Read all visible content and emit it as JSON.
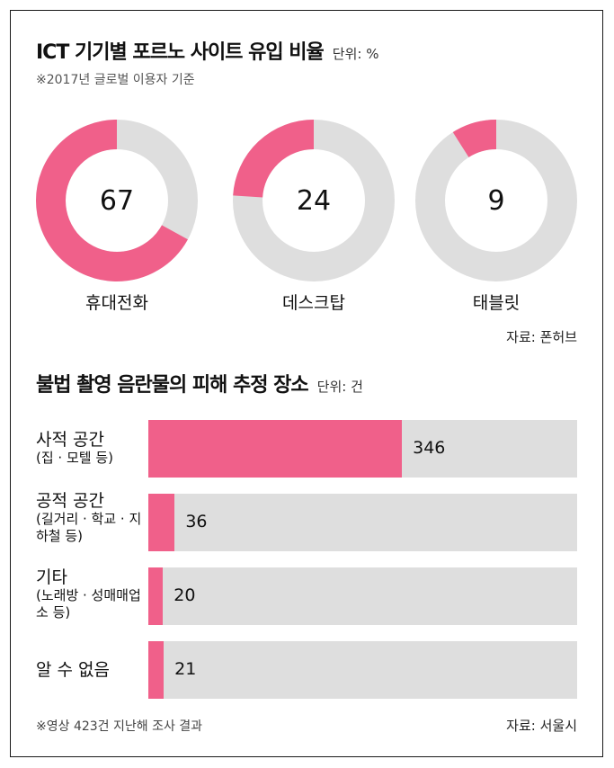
{
  "colors": {
    "accent": "#f0608a",
    "track": "#dedede"
  },
  "section1": {
    "title": "ICT 기기별 포르노 사이트 유입 비율",
    "unit": "단위: %",
    "subtitle": "※2017년 글로벌 이용자 기준",
    "source": "자료: 폰허브"
  },
  "section2": {
    "title": "불법 촬영 음란물의 피해 추정 장소",
    "unit": "단위: 건",
    "footnote": "※영상 423건 지난해 조사 결과",
    "source": "자료: 서울시"
  },
  "chart_data": [
    {
      "type": "pie",
      "title": "ICT 기기별 포르노 사이트 유입 비율",
      "unit": "%",
      "categories": [
        "휴대전화",
        "데스크탑",
        "태블릿"
      ],
      "values": [
        67,
        24,
        9
      ],
      "value_labels": [
        "67",
        "24",
        "9"
      ],
      "legend": "none"
    },
    {
      "type": "bar",
      "orientation": "horizontal",
      "title": "불법 촬영 음란물의 피해 추정 장소",
      "unit": "건",
      "categories": [
        {
          "label": "사적 공간",
          "note": "(집 · 모텔 등)"
        },
        {
          "label": "공적 공간",
          "note": "(길거리 · 학교 · 지하철 등)"
        },
        {
          "label": "기타",
          "note": "(노래방 · 성매매업소 등)"
        },
        {
          "label": "알 수 없음",
          "note": ""
        }
      ],
      "values": [
        346,
        36,
        20,
        21
      ],
      "value_labels": [
        "346",
        "36",
        "20",
        "21"
      ],
      "xlim": [
        0,
        585
      ],
      "grid": false
    }
  ]
}
